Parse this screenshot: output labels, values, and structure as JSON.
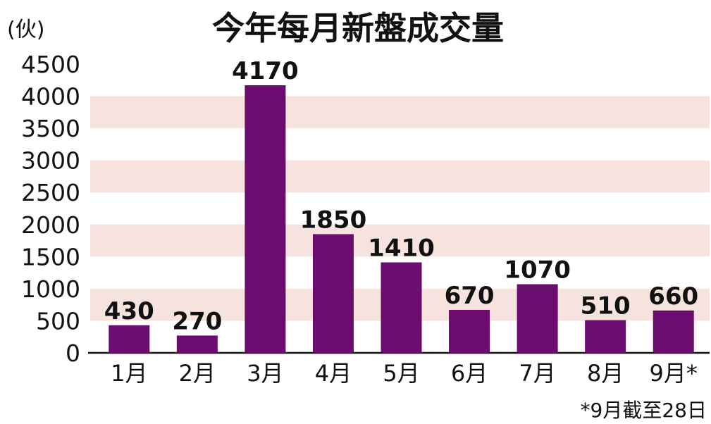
{
  "chart_data": {
    "type": "bar",
    "title": "今年每月新盤成交量",
    "unit_label": "(伙)",
    "categories": [
      "1月",
      "2月",
      "3月",
      "4月",
      "5月",
      "6月",
      "7月",
      "8月",
      "9月*"
    ],
    "values": [
      430,
      270,
      4170,
      1850,
      1410,
      670,
      1070,
      510,
      660
    ],
    "yticks": [
      0,
      500,
      1000,
      1500,
      2000,
      2500,
      3000,
      3500,
      4000,
      4500
    ],
    "ylim": [
      0,
      4500
    ],
    "footnote": "*9月截至28日",
    "grid": "alternating bands",
    "colors": {
      "bar": "#6d0c6f",
      "band": "#f6e3de",
      "axis": "#111111"
    }
  }
}
